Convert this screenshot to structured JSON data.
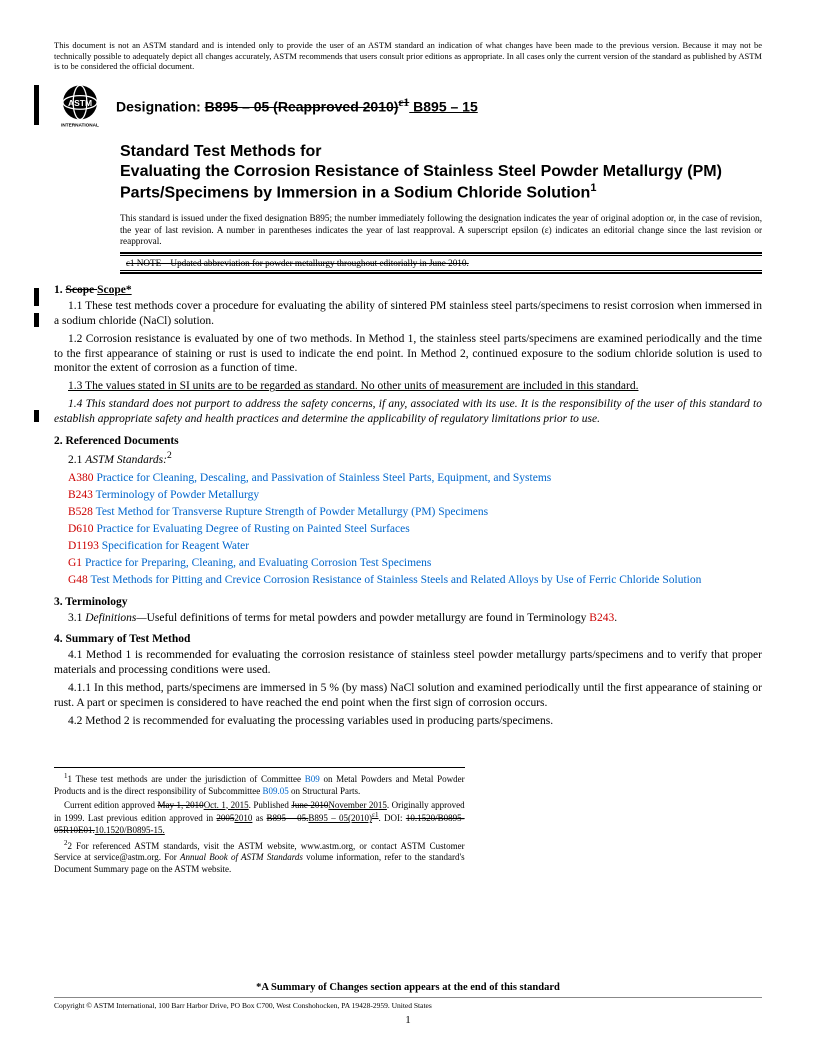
{
  "disclaimer": "This document is not an ASTM standard and is intended only to provide the user of an ASTM standard an indication of what changes have been made to the previous version. Because it may not be technically possible to adequately depict all changes accurately, ASTM recommends that users consult prior editions as appropriate. In all cases only the current version of the standard as published by ASTM is to be considered the official document.",
  "logo_label": "INTERNATIONAL",
  "designation_label": "Designation:",
  "designation_old": "B895 – 05 (Reapproved 2010)",
  "designation_eps": "ε1",
  "designation_new": " B895 – 15",
  "title_line1": "Standard Test Methods for",
  "title_line2": "Evaluating the Corrosion Resistance of Stainless Steel Powder Metallurgy (PM) Parts/Specimens by Immersion in a Sodium Chloride Solution",
  "title_sup": "1",
  "issue_note": "This standard is issued under the fixed designation B895; the number immediately following the designation indicates the year of original adoption or, in the case of revision, the year of last revision. A number in parentheses indicates the year of last reapproval. A superscript epsilon (ε) indicates an editorial change since the last revision or reapproval.",
  "note_box": "ε1 NOTE—Updated abbreviation for powder metallurgy throughout editorially in June 2010.",
  "s1": {
    "head_num": "1. ",
    "head_strike": "Scope ",
    "head_new": "Scope*",
    "p1": "1.1 These test methods cover a procedure for evaluating the ability of sintered PM stainless steel parts/specimens to resist corrosion when immersed in a sodium chloride (NaCl) solution.",
    "p2": "1.2 Corrosion resistance is evaluated by one of two methods. In Method 1, the stainless steel parts/specimens are examined periodically and the time to the first appearance of staining or rust is used to indicate the end point. In Method 2, continued exposure to the sodium chloride solution is used to monitor the extent of corrosion as a function of time.",
    "p3": "1.3 The values stated in SI units are to be regarded as standard. No other units of measurement are included in this standard.",
    "p4": "1.4 This standard does not purport to address the safety concerns, if any, associated with its use. It is the responsibility of the user of this standard to establish appropriate safety and health practices and determine the applicability of regulatory limitations prior to use."
  },
  "s2": {
    "head": "2. Referenced Documents",
    "sub": "2.1 ",
    "sub_it": "ASTM Standards:",
    "sub_sup": "2",
    "refs": [
      {
        "id": "A380",
        "title": "Practice for Cleaning, Descaling, and Passivation of Stainless Steel Parts, Equipment, and Systems"
      },
      {
        "id": "B243",
        "title": "Terminology of Powder Metallurgy"
      },
      {
        "id": "B528",
        "title": "Test Method for Transverse Rupture Strength of Powder Metallurgy (PM) Specimens"
      },
      {
        "id": "D610",
        "title": "Practice for Evaluating Degree of Rusting on Painted Steel Surfaces"
      },
      {
        "id": "D1193",
        "title": "Specification for Reagent Water"
      },
      {
        "id": "G1",
        "title": "Practice for Preparing, Cleaning, and Evaluating Corrosion Test Specimens"
      },
      {
        "id": "G48",
        "title": "Test Methods for Pitting and Crevice Corrosion Resistance of Stainless Steels and Related Alloys by Use of Ferric Chloride Solution"
      }
    ]
  },
  "s3": {
    "head": "3. Terminology",
    "p1a": "3.1 ",
    "p1b": "Definitions—",
    "p1c": "Useful definitions of terms for metal powders and powder metallurgy are found in Terminology ",
    "p1d": "B243",
    "p1e": "."
  },
  "s4": {
    "head": "4. Summary of Test Method",
    "p1": "4.1 Method 1 is recommended for evaluating the corrosion resistance of stainless steel powder metallurgy parts/specimens and to verify that proper materials and processing conditions were used.",
    "p2": "4.1.1 In this method, parts/specimens are immersed in 5 % (by mass) NaCl solution and examined periodically until the first appearance of staining or rust. A part or specimen is considered to have reached the end point when the first sign of corrosion occurs.",
    "p3": "4.2 Method 2 is recommended for evaluating the processing variables used in producing parts/specimens."
  },
  "footnotes": {
    "f1a": "1 These test methods are under the jurisdiction of Committee ",
    "f1b": "B09",
    "f1c": " on Metal Powders and Metal Powder Products and is the direct responsibility of Subcommittee ",
    "f1d": "B09.05",
    "f1e": " on Structural Parts.",
    "f2a": "Current edition approved ",
    "f2b": "May 1, 2010",
    "f2c": "Oct. 1, 2015",
    "f2d": ". Published ",
    "f2e": "June 2010",
    "f2f": "November 2015",
    "f2g": ". Originally approved in 1999. Last previous edition approved in ",
    "f2h": "2005",
    "f2i": "2010",
    "f2j": " as ",
    "f2k": "B895 – 05.",
    "f2l": "B895 – 05(2010)",
    "f2m": "ε1",
    "f2n": ". DOI: ",
    "f2o": "10.1520/B0895-05R10E01.",
    "f2p": "10.1520/B0895-15.",
    "f3a": "2 For referenced ASTM standards, visit the ASTM website, www.astm.org, or contact ASTM Customer Service at service@astm.org. For ",
    "f3b": "Annual Book of ASTM Standards",
    "f3c": " volume information, refer to the standard's Document Summary page on the ASTM website."
  },
  "summary_note": "*A Summary of Changes section appears at the end of this standard",
  "copyright": "Copyright © ASTM International, 100 Barr Harbor Drive, PO Box C700, West Conshohocken, PA 19428-2959. United States",
  "page_num": "1"
}
